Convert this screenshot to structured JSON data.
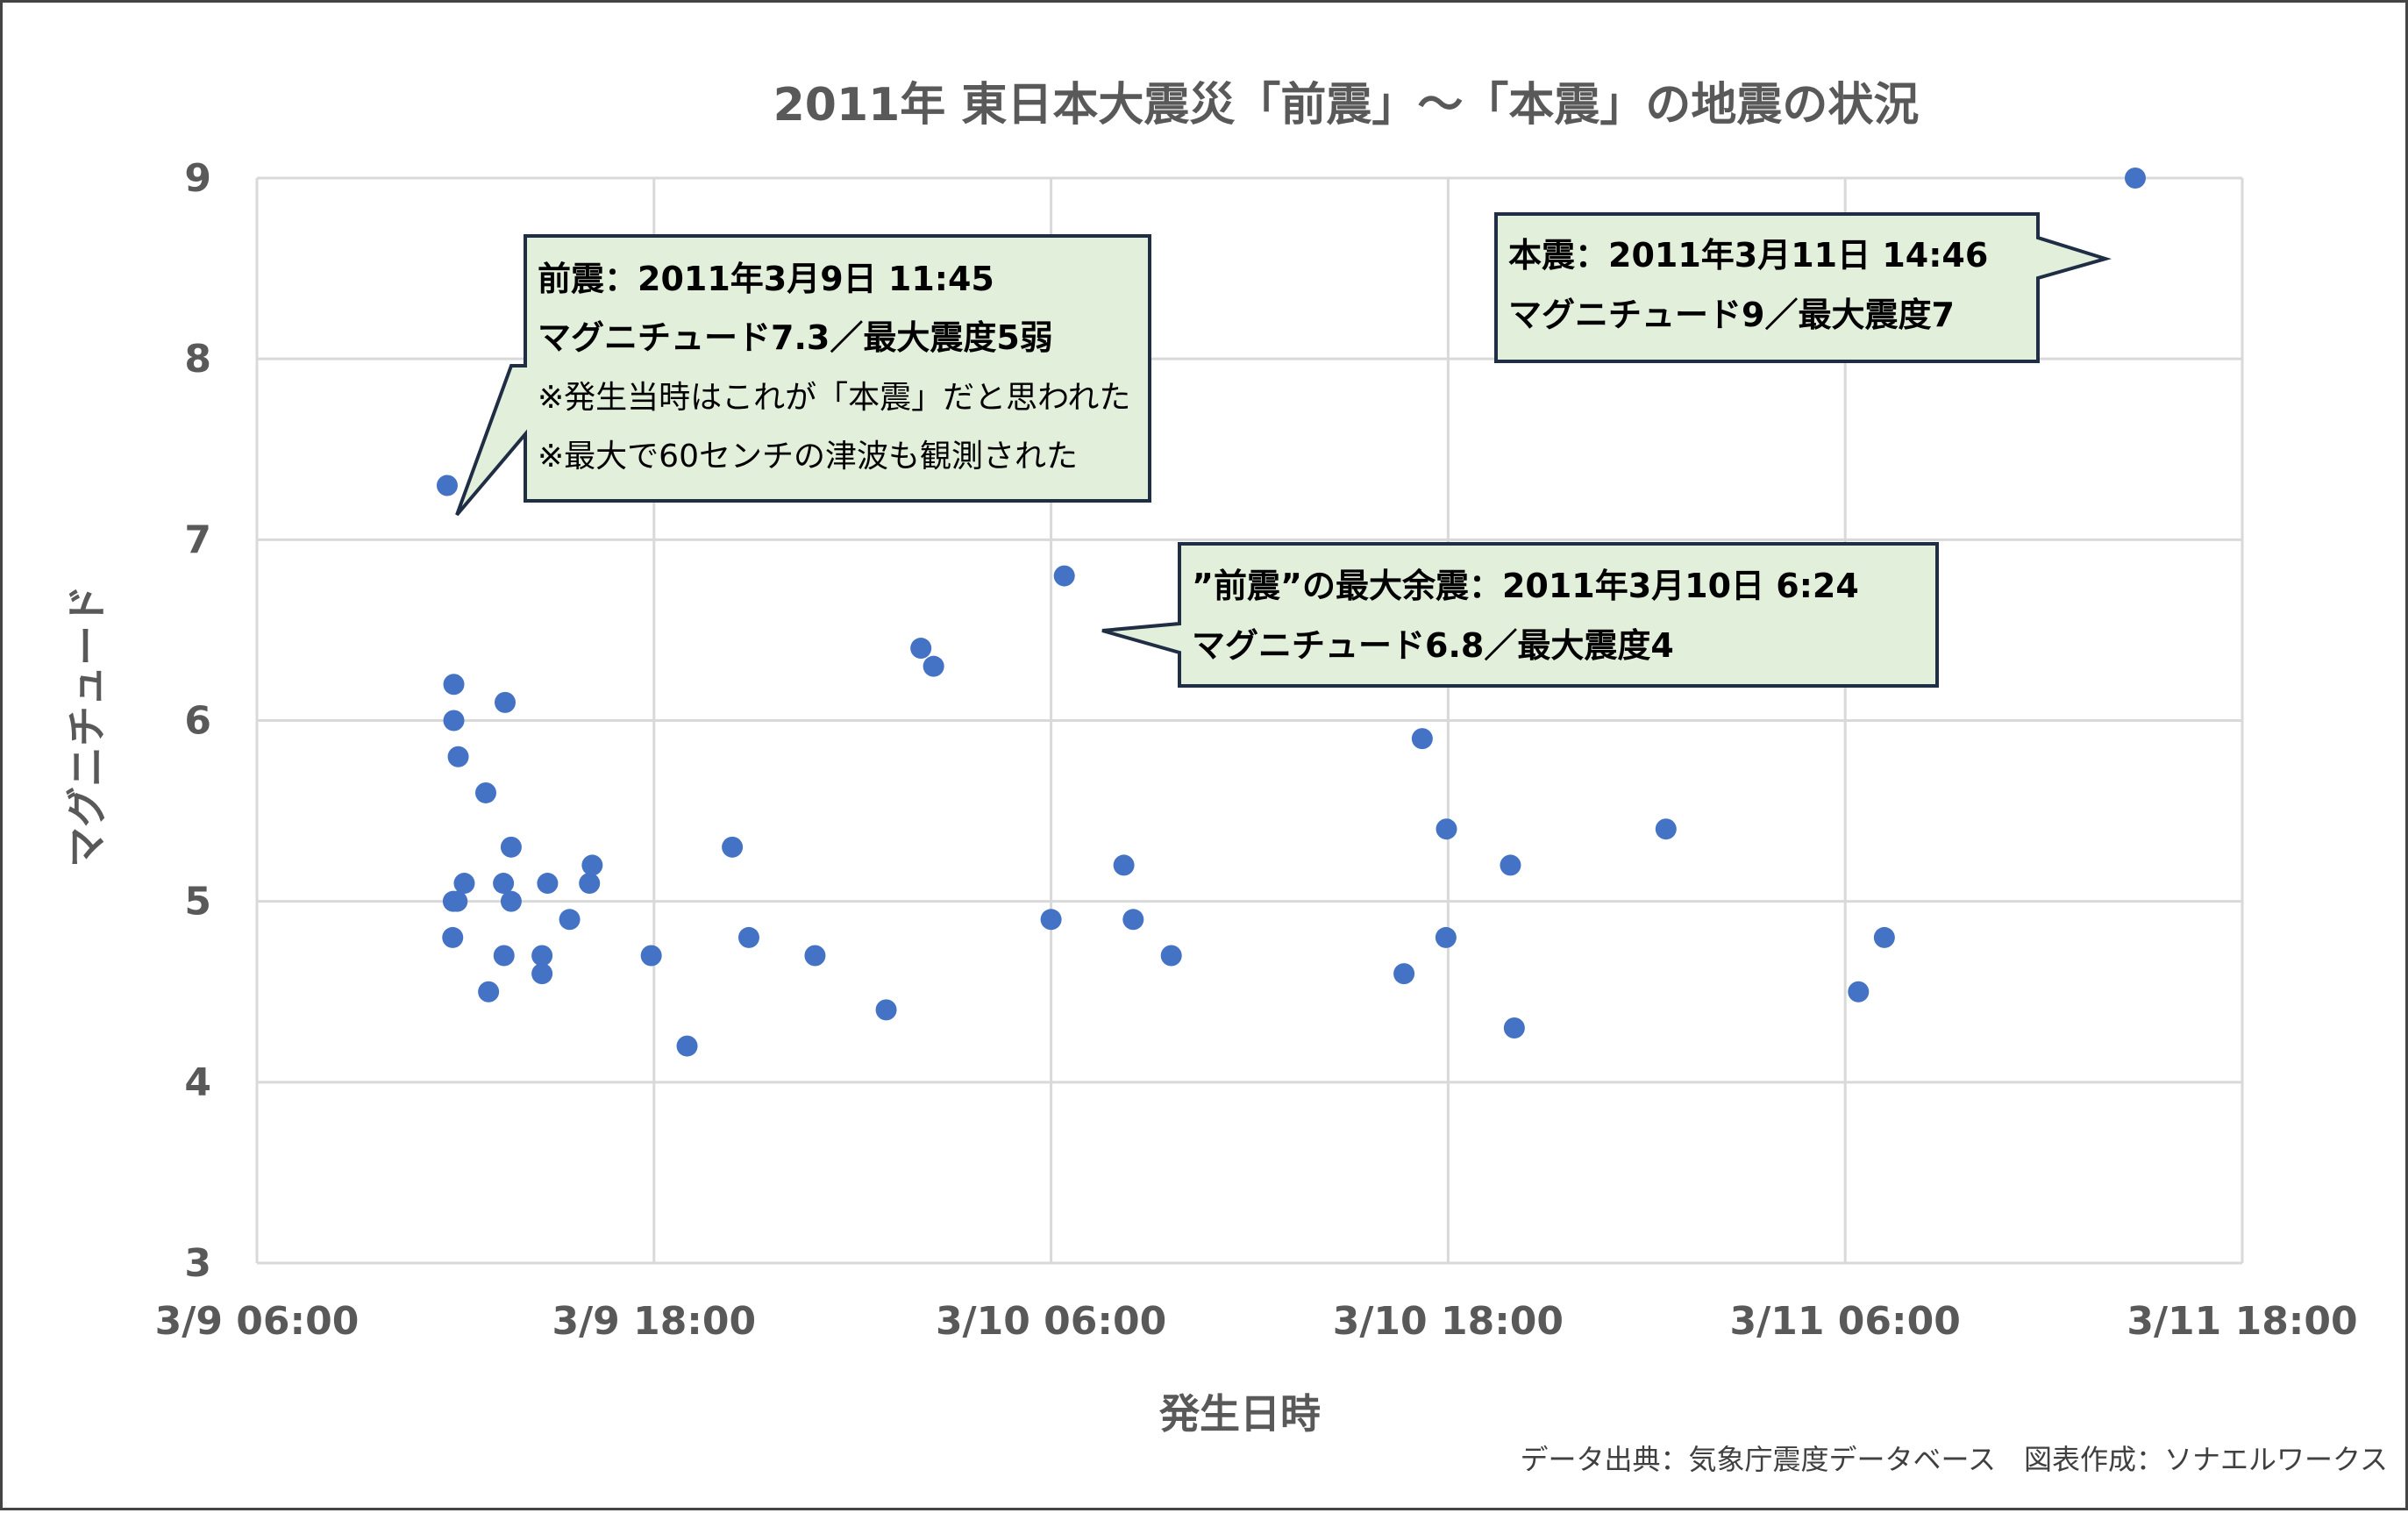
{
  "chart_data": {
    "type": "scatter",
    "title": "2011年 東日本大震災「前震」～「本震」の地震の状況",
    "xlabel": "発生日時",
    "ylabel": "マグニチュード",
    "xlim": [
      "2011-03-09 06:00",
      "2011-03-11 18:00"
    ],
    "ylim": [
      3,
      9
    ],
    "grid": true,
    "legend": "none",
    "x_tick_labels": [
      "3/9 06:00",
      "3/9 18:00",
      "3/10 06:00",
      "3/10 18:00",
      "3/11 06:00",
      "3/11 18:00"
    ],
    "y_tick_labels": [
      "3",
      "4",
      "5",
      "6",
      "7",
      "8",
      "9"
    ],
    "point_color": "#4472c4",
    "points": [
      {
        "x": "2011-03-09 11:45",
        "y": 7.3
      },
      {
        "x": "2011-03-09 11:57",
        "y": 6.2
      },
      {
        "x": "2011-03-09 11:57",
        "y": 6.0
      },
      {
        "x": "2011-03-09 12:05",
        "y": 5.8
      },
      {
        "x": "2011-03-09 11:56",
        "y": 5.0
      },
      {
        "x": "2011-03-09 12:03",
        "y": 5.0
      },
      {
        "x": "2011-03-09 12:16",
        "y": 5.1
      },
      {
        "x": "2011-03-09 11:55",
        "y": 4.8
      },
      {
        "x": "2011-03-09 12:55",
        "y": 5.6
      },
      {
        "x": "2011-03-09 13:00",
        "y": 4.5
      },
      {
        "x": "2011-03-09 13:30",
        "y": 6.1
      },
      {
        "x": "2011-03-09 13:27",
        "y": 5.1
      },
      {
        "x": "2011-03-09 13:28",
        "y": 4.7
      },
      {
        "x": "2011-03-09 13:41",
        "y": 5.3
      },
      {
        "x": "2011-03-09 13:41",
        "y": 5.0
      },
      {
        "x": "2011-03-09 14:37",
        "y": 4.7
      },
      {
        "x": "2011-03-09 14:37",
        "y": 4.6
      },
      {
        "x": "2011-03-09 14:47",
        "y": 5.1
      },
      {
        "x": "2011-03-09 15:27",
        "y": 4.9
      },
      {
        "x": "2011-03-09 16:03",
        "y": 5.1
      },
      {
        "x": "2011-03-09 16:08",
        "y": 5.2
      },
      {
        "x": "2011-03-09 17:55",
        "y": 4.7
      },
      {
        "x": "2011-03-09 19:00",
        "y": 4.2
      },
      {
        "x": "2011-03-09 20:22",
        "y": 5.3
      },
      {
        "x": "2011-03-09 20:52",
        "y": 4.8
      },
      {
        "x": "2011-03-09 22:52",
        "y": 4.7
      },
      {
        "x": "2011-03-10 01:01",
        "y": 4.4
      },
      {
        "x": "2011-03-10 02:04",
        "y": 6.4
      },
      {
        "x": "2011-03-10 02:27",
        "y": 6.3
      },
      {
        "x": "2011-03-10 06:00",
        "y": 4.9
      },
      {
        "x": "2011-03-10 06:24",
        "y": 6.8
      },
      {
        "x": "2011-03-10 08:12",
        "y": 5.2
      },
      {
        "x": "2011-03-10 08:29",
        "y": 4.9
      },
      {
        "x": "2011-03-10 09:38",
        "y": 4.7
      },
      {
        "x": "2011-03-10 16:40",
        "y": 4.6
      },
      {
        "x": "2011-03-10 17:13",
        "y": 5.9
      },
      {
        "x": "2011-03-10 17:56",
        "y": 4.8
      },
      {
        "x": "2011-03-10 17:57",
        "y": 5.4
      },
      {
        "x": "2011-03-10 19:53",
        "y": 5.2
      },
      {
        "x": "2011-03-10 20:00",
        "y": 4.3
      },
      {
        "x": "2011-03-11 00:35",
        "y": 5.4
      },
      {
        "x": "2011-03-11 06:24",
        "y": 4.5
      },
      {
        "x": "2011-03-11 07:11",
        "y": 4.8
      },
      {
        "x": "2011-03-11 14:46",
        "y": 9.0
      }
    ],
    "annotations": [
      {
        "id": "foreshock",
        "lines": [
          {
            "text": "前震：2011年3月9日 11:45",
            "bold": true
          },
          {
            "text": "マグニチュード7.3／最大震度5弱",
            "bold": true
          },
          {
            "text": "※発生当時はこれが「本震」だと思われた",
            "bold": false
          },
          {
            "text": "※最大で60センチの津波も観測された",
            "bold": false
          }
        ]
      },
      {
        "id": "mainshock",
        "lines": [
          {
            "text": "本震：2011年3月11日 14:46",
            "bold": true
          },
          {
            "text": "マグニチュード9／最大震度7",
            "bold": true
          }
        ]
      },
      {
        "id": "aftershock",
        "lines": [
          {
            "text": "”前震”の最大余震：2011年3月10日 6:24",
            "bold": true
          },
          {
            "text": "マグニチュード6.8／最大震度4",
            "bold": true
          }
        ]
      }
    ]
  },
  "source": "データ出典：気象庁震度データベース　図表作成：ソナエルワークス"
}
